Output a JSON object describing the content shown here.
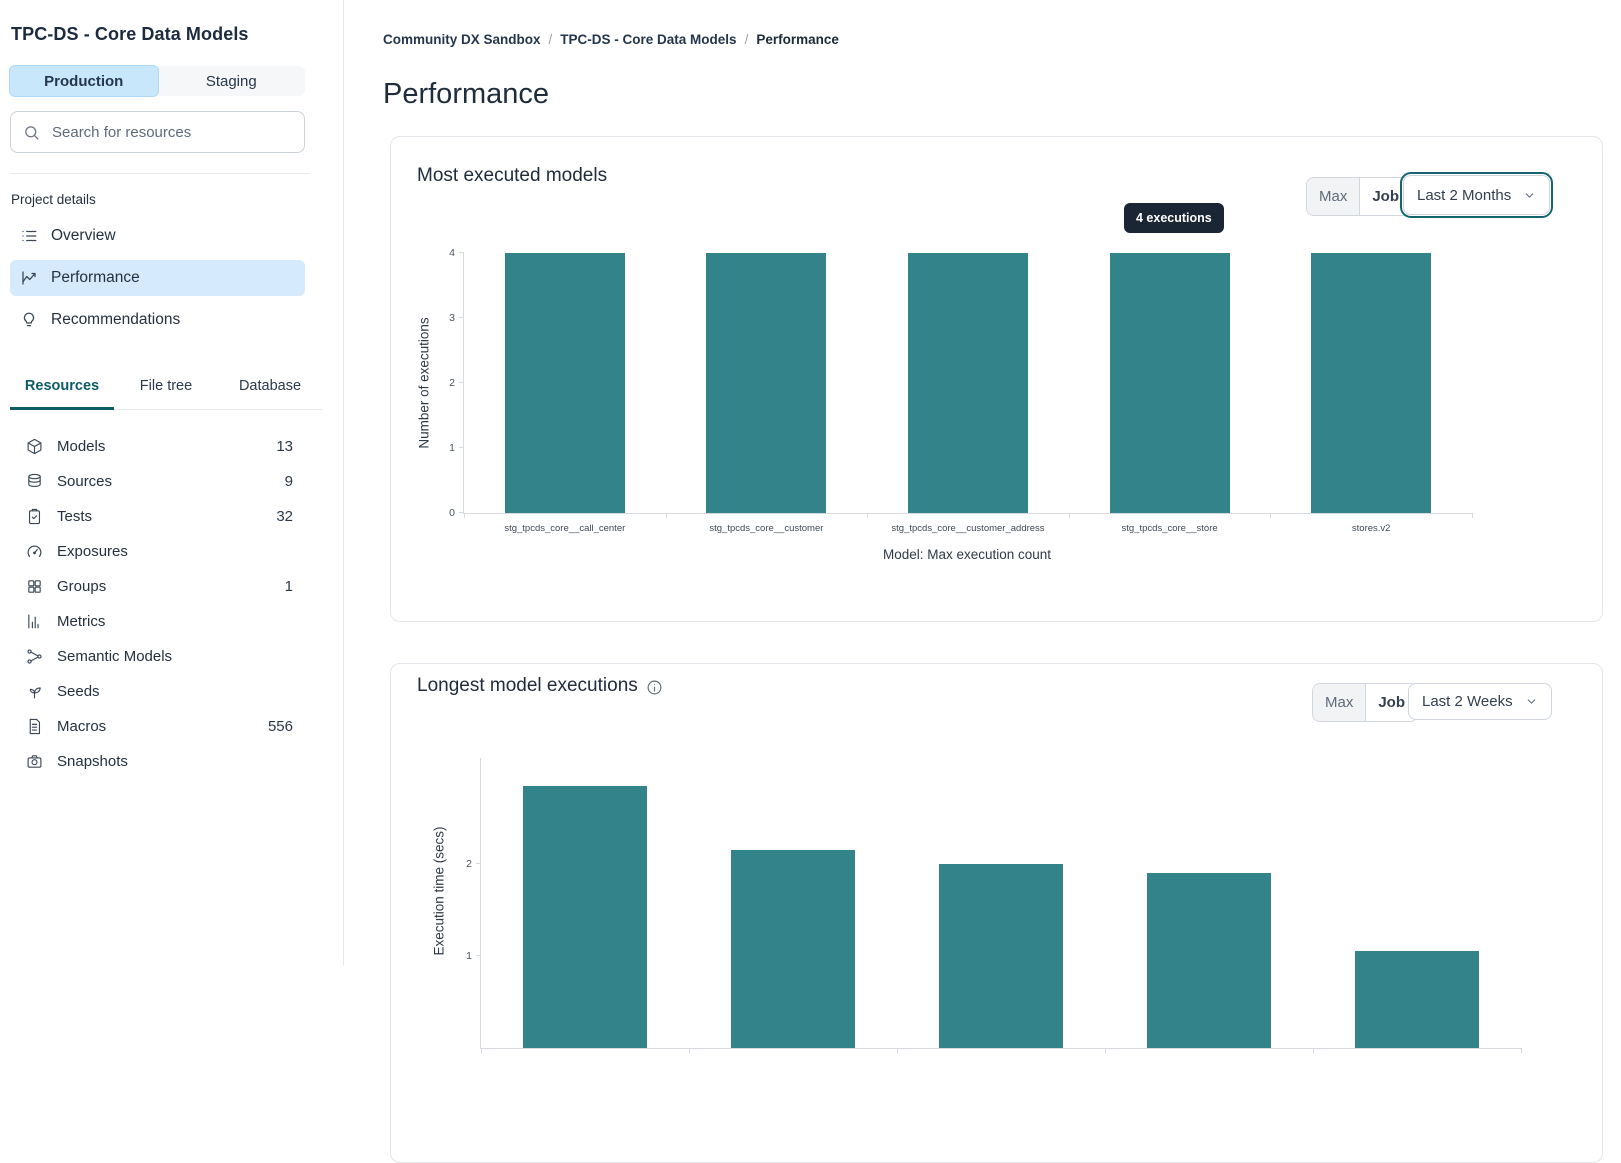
{
  "sidebar": {
    "title": "TPC-DS - Core Data Models",
    "environment_tabs": [
      {
        "label": "Production",
        "active": true
      },
      {
        "label": "Staging",
        "active": false
      }
    ],
    "search_placeholder": "Search for resources",
    "section_label": "Project details",
    "nav": [
      {
        "label": "Overview",
        "active": false
      },
      {
        "label": "Performance",
        "active": true
      },
      {
        "label": "Recommendations",
        "active": false
      }
    ],
    "resource_tabs": [
      {
        "label": "Resources",
        "active": true
      },
      {
        "label": "File tree",
        "active": false
      },
      {
        "label": "Database",
        "active": false
      }
    ],
    "resources": [
      {
        "label": "Models",
        "count": "13"
      },
      {
        "label": "Sources",
        "count": "9"
      },
      {
        "label": "Tests",
        "count": "32"
      },
      {
        "label": "Exposures",
        "count": ""
      },
      {
        "label": "Groups",
        "count": "1"
      },
      {
        "label": "Metrics",
        "count": ""
      },
      {
        "label": "Semantic Models",
        "count": ""
      },
      {
        "label": "Seeds",
        "count": ""
      },
      {
        "label": "Macros",
        "count": "556"
      },
      {
        "label": "Snapshots",
        "count": ""
      }
    ]
  },
  "breadcrumb": {
    "items": [
      "Community DX Sandbox",
      "TPC-DS - Core Data Models"
    ],
    "current": "Performance"
  },
  "page_title": "Performance",
  "colors": {
    "bar_teal": "#32838a",
    "tab_active_teal": "#0d5c66",
    "active_item_blue": "#d5eafd",
    "env_tab_blue": "#c9e7fb",
    "tooltip_bg": "#1b2634",
    "focus_ring_teal": "#15656e"
  },
  "chart_data": [
    {
      "type": "bar",
      "title": "Most executed models",
      "categories": [
        "stg_tpcds_core__call_center",
        "stg_tpcds_core__customer",
        "stg_tpcds_core__customer_address",
        "stg_tpcds_core__store",
        "stores.v2"
      ],
      "values": [
        4,
        4,
        4,
        4,
        4
      ],
      "ylabel": "Number of executions",
      "xlabel": "Model: Max execution count",
      "yticks": [
        0,
        1,
        2,
        3,
        4
      ],
      "ylim": [
        0,
        4
      ],
      "grid": false,
      "bar_color": "#32838a",
      "tooltip": "4 executions",
      "controls": {
        "segments": [
          "Max",
          "Job"
        ],
        "selected": "Job",
        "range": "Last 2 Months",
        "focused": true
      }
    },
    {
      "type": "bar",
      "title": "Longest model executions",
      "values": [
        2.85,
        2.15,
        2.0,
        1.9,
        1.05
      ],
      "ylabel": "Execution time (secs)",
      "yticks": [
        1,
        2
      ],
      "ylim": [
        0,
        3
      ],
      "grid": false,
      "bar_color": "#32838a",
      "controls": {
        "segments": [
          "Max",
          "Job"
        ],
        "selected": "Job",
        "range": "Last 2 Weeks",
        "focused": false
      },
      "note": "chart is cut off at the bottom edge of the viewport; x-axis labels not visible"
    }
  ]
}
